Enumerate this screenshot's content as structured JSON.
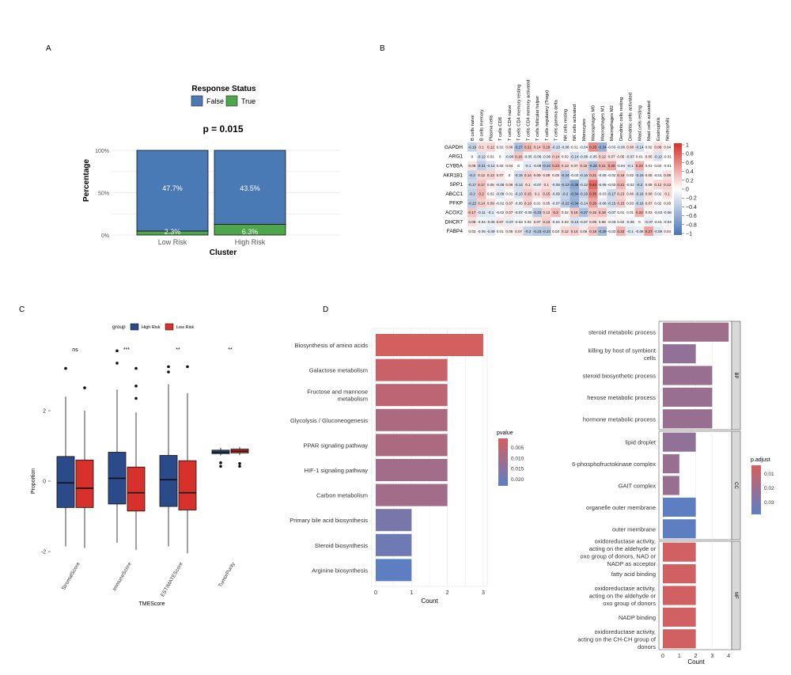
{
  "colors": {
    "false_blue": "#4a7ab5",
    "true_green": "#4ea64a",
    "high_risk": "#2a4a8a",
    "low_risk": "#d8302a",
    "p_high": "#d45f5f",
    "p_low": "#5d7fc2",
    "heat_pos": "#d73027",
    "heat_neg": "#4575b4"
  },
  "panel_labels": {
    "a": "A",
    "b": "B",
    "c": "C",
    "d": "D",
    "e": "E"
  },
  "chart_data": [
    {
      "panel": "A",
      "type": "bar",
      "title": "p = 0.015",
      "legend_title": "Response Status",
      "legend": [
        "False",
        "True"
      ],
      "xlabel": "Cluster",
      "ylabel": "Percentage",
      "categories": [
        "Low Risk",
        "High Risk"
      ],
      "series": [
        {
          "name": "False",
          "values": [
            47.7,
            43.5
          ],
          "labels": [
            "47.7%",
            "43.5%"
          ]
        },
        {
          "name": "True",
          "values": [
            2.3,
            6.3
          ],
          "labels": [
            "2.3%",
            "6.3%"
          ]
        }
      ],
      "stack_share_true": [
        0.046,
        0.126
      ],
      "yticks": [
        "0%",
        "50%",
        "100%"
      ],
      "ylim": [
        0,
        100
      ]
    },
    {
      "panel": "B",
      "type": "heatmap",
      "rows": [
        "GAPDH",
        "ARG1",
        "CYB5A",
        "AKR1B1",
        "SPP1",
        "ABCC1",
        "PFKP",
        "ACOX2",
        "DHCR7",
        "FABP4"
      ],
      "columns": [
        "B cells naive",
        "B cells memory",
        "Plasma cells",
        "T cells CD8",
        "T cells CD4 naive",
        "T cells CD4 memory resting",
        "T cells CD4 memory activated",
        "T cells follicular helper",
        "T cells regulatory (Tregs)",
        "T cells gamma delta",
        "NK cells resting",
        "NK cells activated",
        "Monocytes",
        "Macrophages M0",
        "Macrophages M1",
        "Macrophages M2",
        "Dendritic cells resting",
        "Dendritic cells activated",
        "Mast cells resting",
        "Mast cells activated",
        "Eosinophils",
        "Neutrophils"
      ],
      "values": [
        [
          -0.19,
          0.1,
          0.12,
          0.02,
          0.06,
          -0.27,
          0.21,
          0.14,
          0.19,
          -0.13,
          -0.08,
          0.01,
          -0.04,
          0.33,
          -0.34,
          -0.03,
          -0.06,
          0.08,
          -0.14,
          0.02,
          0.09,
          0.04
        ],
        [
          0,
          -0.12,
          0.01,
          0,
          -0.08,
          0.16,
          -0.05,
          -0.06,
          -0.06,
          0.14,
          0.02,
          -0.14,
          -0.08,
          -0.05,
          0.12,
          0.07,
          0.05,
          -0.07,
          0.01,
          0.05,
          -0.12,
          -0.01
        ],
        [
          0.08,
          -0.21,
          -0.12,
          0.02,
          0.04,
          0,
          -0.1,
          -0.08,
          -0.24,
          0.23,
          0.13,
          0.07,
          0.15,
          -0.28,
          0.21,
          0.26,
          -0.04,
          -0.1,
          0.23,
          0.01,
          0.02,
          -0.01
        ],
        [
          -0.2,
          0.12,
          0.13,
          0.07,
          0,
          -0.15,
          0.14,
          0.09,
          0.08,
          0.05,
          -0.24,
          -0.03,
          -0.16,
          0.21,
          -0.05,
          -0.02,
          0.16,
          0.02,
          -0.16,
          0.05,
          -0.01,
          0.09
        ],
        [
          -0.17,
          0.17,
          0.05,
          -0.08,
          0.06,
          -0.14,
          0.1,
          -0.07,
          0.1,
          -0.09,
          -0.23,
          -0.38,
          -0.12,
          0.43,
          -0.06,
          -0.03,
          0.21,
          -0.02,
          -0.2,
          0.05,
          0.12,
          0.13
        ],
        [
          -0.2,
          0.2,
          0.02,
          -0.09,
          0.01,
          -0.13,
          0.15,
          0.1,
          0.15,
          -0.09,
          -0.2,
          -0.34,
          -0.19,
          0.35,
          -0.03,
          -0.17,
          0.13,
          0.06,
          -0.16,
          0.08,
          0.02,
          0.1
        ],
        [
          -0.22,
          0.14,
          0.09,
          -0.02,
          0.07,
          -0.05,
          0.13,
          0.01,
          0.05,
          -0.07,
          -0.22,
          -0.34,
          -0.14,
          0.26,
          -0.08,
          -0.15,
          0.15,
          0.03,
          -0.16,
          0.07,
          0.02,
          0.03
        ],
        [
          0.17,
          -0.11,
          -0.1,
          -0.02,
          0.07,
          -0.07,
          -0.05,
          -0.23,
          0.12,
          0.2,
          0.02,
          0.16,
          -0.27,
          0.15,
          0.18,
          -0.07,
          0.01,
          0.01,
          0.22,
          0.03,
          -0.03,
          -0.06
        ],
        [
          0.09,
          -0.04,
          -0.06,
          0.07,
          -0.07,
          -0.03,
          0.02,
          0.07,
          0.13,
          -0.04,
          0.03,
          -0.13,
          -0.07,
          0.09,
          0.06,
          -0.03,
          0.02,
          -0.05,
          0,
          -0.07,
          -0.01,
          -0.04
        ],
        [
          0.03,
          -0.05,
          -0.09,
          0.01,
          0.05,
          0.07,
          -0.2,
          -0.23,
          -0.24,
          0.03,
          0.12,
          0.14,
          0.06,
          0.18,
          -0.29,
          -0.02,
          0.22,
          -0.1,
          -0.08,
          0.27,
          -0.09,
          0.04
        ]
      ],
      "colorbar_ticks": [
        "1",
        "0.8",
        "0.6",
        "0.4",
        "0.2",
        "0",
        "−0.2",
        "−0.4",
        "−0.6",
        "−0.8",
        "−1"
      ]
    },
    {
      "panel": "C",
      "type": "box",
      "legend_title": "group",
      "legend": [
        "High Risk",
        "Low Risk"
      ],
      "xlabel": "TMEScore",
      "ylabel": "Proportion",
      "categories": [
        "StromalScore",
        "ImmuneScore",
        "ESTIMATEScore",
        "TumorPurity"
      ],
      "significance": [
        "ns",
        "***",
        "**",
        "**"
      ],
      "yticks": [
        "-2",
        "0",
        "2"
      ],
      "ylim": [
        -2.3,
        3.6
      ],
      "series": [
        {
          "name": "High Risk",
          "boxes": [
            {
              "lo": -1.85,
              "q1": -0.75,
              "med": -0.05,
              "q3": 0.7,
              "hi": 2.4,
              "out": [
                3.2
              ]
            },
            {
              "lo": -1.75,
              "q1": -0.65,
              "med": 0.08,
              "q3": 0.82,
              "hi": 2.6,
              "out": [
                3.35,
                3.7
              ]
            },
            {
              "lo": -1.85,
              "q1": -0.72,
              "med": 0.04,
              "q3": 0.73,
              "hi": 2.75,
              "out": [
                3.1,
                3.25
              ]
            },
            {
              "lo": 0.73,
              "q1": 0.78,
              "med": 0.82,
              "q3": 0.88,
              "hi": 0.95,
              "out": [
                0.42,
                0.52
              ]
            }
          ]
        },
        {
          "name": "Low Risk",
          "boxes": [
            {
              "lo": -1.9,
              "q1": -0.75,
              "med": -0.2,
              "q3": 0.6,
              "hi": 2.0,
              "out": [
                2.65
              ]
            },
            {
              "lo": -1.95,
              "q1": -0.85,
              "med": -0.33,
              "q3": 0.4,
              "hi": 1.95,
              "out": [
                2.35,
                2.7,
                3.2
              ]
            },
            {
              "lo": -2.05,
              "q1": -0.82,
              "med": -0.33,
              "q3": 0.58,
              "hi": 2.5,
              "out": [
                3.25
              ]
            },
            {
              "lo": 0.74,
              "q1": 0.8,
              "med": 0.85,
              "q3": 0.91,
              "hi": 0.97,
              "out": [
                0.42,
                0.5
              ]
            }
          ]
        }
      ]
    },
    {
      "panel": "D",
      "type": "bar",
      "orientation": "horizontal",
      "xlabel": "Count",
      "legend_title": "pvalue",
      "legend_ticks": [
        "0.005",
        "0.010",
        "0.015",
        "0.020"
      ],
      "pvalue_range": [
        0.001,
        0.022
      ],
      "categories": [
        "Biosynthesis of amino acids",
        "Galactose metabolism",
        "Fructose and mannose\nmetabolism",
        "Glycolysis / Gluconeogenesis",
        "PPAR signaling pathway",
        "HIF-1 signaling pathway",
        "Carbon metabolism",
        "Primary bile acid biosynthesis",
        "Steroid biosynthesis",
        "Arginine biosynthesis"
      ],
      "values": [
        3,
        2,
        2,
        2,
        2,
        2,
        2,
        1,
        1,
        1
      ],
      "pvalues": [
        0.001,
        0.003,
        0.005,
        0.008,
        0.008,
        0.01,
        0.01,
        0.017,
        0.019,
        0.022
      ],
      "xticks": [
        "0",
        "1",
        "2",
        "3"
      ],
      "xlim": [
        -0.1,
        3.1
      ]
    },
    {
      "panel": "E",
      "type": "bar",
      "orientation": "horizontal",
      "xlabel": "Count",
      "legend_title": "p.adjust",
      "legend_ticks": [
        "0.01",
        "0.02",
        "0.03"
      ],
      "padj_range": [
        0.004,
        0.036
      ],
      "xticks": [
        "0",
        "1",
        "2",
        "3",
        "4"
      ],
      "xlim": [
        -0.1,
        4.25
      ],
      "facets": [
        {
          "name": "BP",
          "categories": [
            "steroid metabolic process",
            "killing by host of symbiont\ncells",
            "steroid biosynthetic process",
            "hexose metabolic process",
            "hormone metabolic process"
          ],
          "values": [
            4,
            2,
            3,
            3,
            3
          ],
          "padj": [
            0.018,
            0.022,
            0.02,
            0.02,
            0.02
          ]
        },
        {
          "name": "CC",
          "categories": [
            "lipid droplet",
            "6-phosphofructokinase complex",
            "GAIT complex",
            "organelle outer membrane",
            "outer membrane"
          ],
          "values": [
            2,
            1,
            1,
            2,
            2
          ],
          "padj": [
            0.022,
            0.02,
            0.02,
            0.036,
            0.036
          ]
        },
        {
          "name": "MF",
          "categories": [
            "oxidoreductase activity,\nacting on the aldehyde or\noxo group of donors, NAD or\nNADP as acceptor",
            "fatty acid binding",
            "oxidoreductase activity,\nacting on the aldehyde or\noxo group of donors",
            "NADP binding",
            "oxidoreductase activity,\nacting on the CH-CH group of\ndonors"
          ],
          "values": [
            2,
            2,
            2,
            2,
            2
          ],
          "padj": [
            0.005,
            0.005,
            0.005,
            0.005,
            0.005
          ]
        }
      ]
    }
  ]
}
